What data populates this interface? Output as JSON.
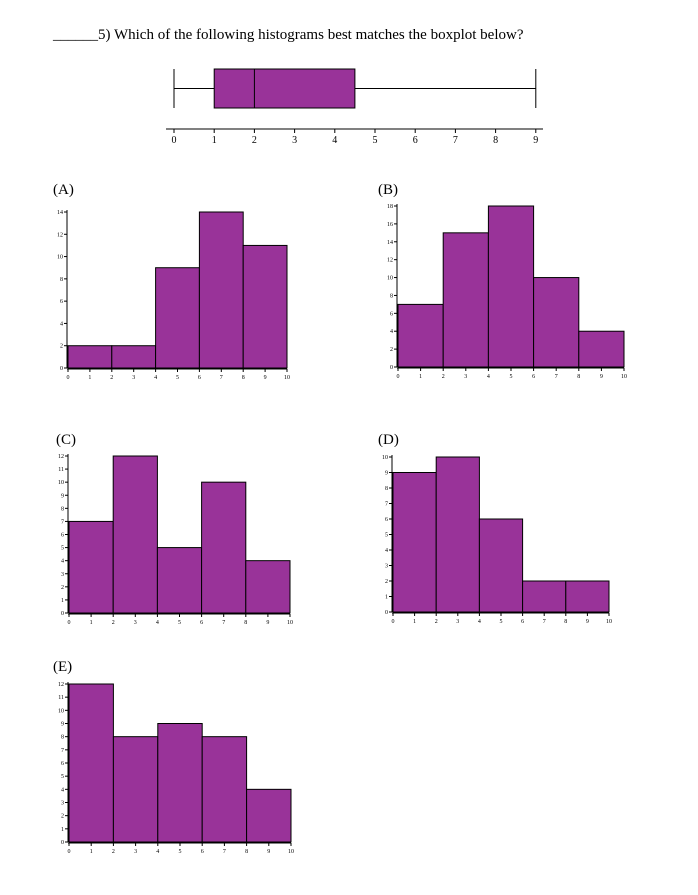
{
  "question": {
    "blank": "______",
    "text": "5) Which of the following histograms best matches the boxplot below?"
  },
  "colors": {
    "fill": "#993399",
    "stroke": "#000000"
  },
  "boxplot": {
    "min": 0,
    "q1": 1,
    "median": 2,
    "q3": 4.5,
    "max": 9,
    "axis_ticks": [
      0,
      1,
      2,
      3,
      4,
      5,
      6,
      7,
      8,
      9
    ]
  },
  "chart_data": [
    {
      "label": "(A)",
      "type": "bar",
      "bin_edges": [
        0,
        2,
        4,
        6,
        8,
        10
      ],
      "values": [
        2,
        2,
        9,
        14,
        11
      ],
      "ylim": [
        0,
        14
      ],
      "yticks": [
        0,
        2,
        4,
        6,
        8,
        10,
        12,
        14
      ],
      "xticks": [
        0,
        1,
        2,
        3,
        4,
        5,
        6,
        7,
        8,
        9,
        10
      ]
    },
    {
      "label": "(B)",
      "type": "bar",
      "bin_edges": [
        0,
        2,
        4,
        6,
        8,
        10
      ],
      "values": [
        7,
        15,
        18,
        10,
        4
      ],
      "ylim": [
        0,
        18
      ],
      "yticks": [
        0,
        2,
        4,
        6,
        8,
        10,
        12,
        14,
        16,
        18
      ],
      "xticks": [
        0,
        1,
        2,
        3,
        4,
        5,
        6,
        7,
        8,
        9,
        10
      ]
    },
    {
      "label": "(C)",
      "type": "bar",
      "bin_edges": [
        0,
        2,
        4,
        6,
        8,
        10
      ],
      "values": [
        7,
        12,
        5,
        10,
        4
      ],
      "ylim": [
        0,
        12
      ],
      "yticks": [
        0,
        1,
        2,
        3,
        4,
        5,
        6,
        7,
        8,
        9,
        10,
        11,
        12
      ],
      "xticks": [
        0,
        1,
        2,
        3,
        4,
        5,
        6,
        7,
        8,
        9,
        10
      ]
    },
    {
      "label": "(D)",
      "type": "bar",
      "bin_edges": [
        0,
        2,
        4,
        6,
        8,
        10
      ],
      "values": [
        9,
        10,
        6,
        2,
        2
      ],
      "ylim": [
        0,
        10
      ],
      "yticks": [
        0,
        1,
        2,
        3,
        4,
        5,
        6,
        7,
        8,
        9,
        10
      ],
      "xticks": [
        0,
        1,
        2,
        3,
        4,
        5,
        6,
        7,
        8,
        9,
        10
      ]
    },
    {
      "label": "(E)",
      "type": "bar",
      "bin_edges": [
        0,
        2,
        4,
        6,
        8,
        10
      ],
      "values": [
        12,
        8,
        9,
        8,
        4
      ],
      "ylim": [
        0,
        12
      ],
      "yticks": [
        0,
        1,
        2,
        3,
        4,
        5,
        6,
        7,
        8,
        9,
        10,
        11,
        12
      ],
      "xticks": [
        0,
        1,
        2,
        3,
        4,
        5,
        6,
        7,
        8,
        9,
        10
      ]
    }
  ]
}
